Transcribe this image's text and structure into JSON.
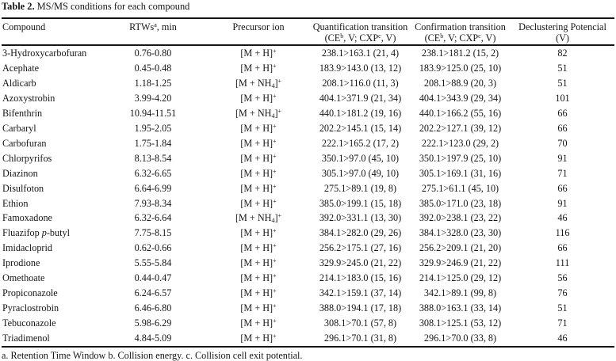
{
  "page": {
    "background": "#ffffff",
    "text_color": "#161616",
    "rule_color": "#151515"
  },
  "caption": {
    "label": "Table 2.",
    "text": "MS/MS conditions for each compound"
  },
  "table": {
    "columns": [
      {
        "id": "compound",
        "align": "left",
        "line1": "Compound",
        "line2": ""
      },
      {
        "id": "rtw",
        "align": "center",
        "line1": "RTWs^{a}, min",
        "line2": ""
      },
      {
        "id": "precursor",
        "align": "center",
        "line1": "Precursor ion",
        "line2": ""
      },
      {
        "id": "quantification",
        "align": "center",
        "line1": "Quantification transition",
        "line2": "(CE^{b}, V; CXP^{c}, V)"
      },
      {
        "id": "confirmation",
        "align": "center",
        "line1": "Confirmation transition",
        "line2": "(CE^{b}, V; CXP^{c}, V)"
      },
      {
        "id": "declustering",
        "align": "center",
        "line1": "Declustering Potencial",
        "line2": "(V)"
      }
    ],
    "rows": [
      [
        "3-Hydroxycarbofuran",
        "0.76-0.80",
        "[M + H]^{+}",
        "238.1>163.1 (21, 4)",
        "238.1>181.2 (15, 2)",
        "82"
      ],
      [
        "Acephate",
        "0.45-0.48",
        "[M + H]^{+}",
        "183.9>143.0 (13, 12)",
        "183.9>125.0 (25, 10)",
        "51"
      ],
      [
        "Aldicarb",
        "1.18-1.25",
        "[M + NH_{4}]^{+}",
        "208.1>116.0 (11, 3)",
        "208.1>88.9 (20, 3)",
        "51"
      ],
      [
        "Azoxystrobin",
        "3.99-4.20",
        "[M + H]^{+}",
        "404.1>371.9 (21, 34)",
        "404.1>343.9 (29, 34)",
        "101"
      ],
      [
        "Bifenthrin",
        "10.94-11.51",
        "[M + NH_{4}]^{+}",
        "440.1>181.2 (19, 16)",
        "440.1>166.2 (55, 16)",
        "66"
      ],
      [
        "Carbaryl",
        "1.95-2.05",
        "[M + H]^{+}",
        "202.2>145.1 (15, 14)",
        "202.2>127.1 (39, 12)",
        "66"
      ],
      [
        "Carbofuran",
        "1.75-1.84",
        "[M + H]^{+}",
        "222.1>165.2 (17, 2)",
        "222.1>123.0 (29, 2)",
        "70"
      ],
      [
        "Chlorpyrifos",
        "8.13-8.54",
        "[M + H]^{+}",
        "350.1>97.0 (45, 10)",
        "350.1>197.9 (25, 10)",
        "91"
      ],
      [
        "Diazinon",
        "6.32-6.65",
        "[M + H]^{+}",
        "305.1>97.0 (49, 10)",
        "305.1>169.1 (31, 16)",
        "71"
      ],
      [
        "Disulfoton",
        "6.64-6.99",
        "[M + H]^{+}",
        "275.1>89.1 (19, 8)",
        "275.1>61.1 (45, 10)",
        "66"
      ],
      [
        "Ethion",
        "7.93-8.34",
        "[M + H]^{+}",
        "385.0>199.1 (15, 18)",
        "385.0>171.0 (23, 18)",
        "91"
      ],
      [
        "Famoxadone",
        "6.32-6.64",
        "[M + NH_{4}]^{+}",
        "392.0>331.1 (13, 30)",
        "392.0>238.1 (23, 22)",
        "46"
      ],
      [
        "Fluazifop *p*-butyl",
        "7.75-8.15",
        "[M + H]^{+}",
        "384.1>282.0 (29, 26)",
        "384.1>328.0 (23, 30)",
        "116"
      ],
      [
        "Imidacloprid",
        "0.62-0.66",
        "[M + H]^{+}",
        "256.2>175.1 (27, 16)",
        "256.2>209.1 (21, 20)",
        "66"
      ],
      [
        "Iprodione",
        "5.55-5.84",
        "[M + H]^{+}",
        "329.9>245.0 (21, 22)",
        "329.9>246.9 (21, 22)",
        "111"
      ],
      [
        "Omethoate",
        "0.44-0.47",
        "[M + H]^{+}",
        "214.1>183.0 (15, 16)",
        "214.1>125.0 (29, 12)",
        "56"
      ],
      [
        "Propiconazole",
        "6.24-6.57",
        "[M + H]^{+}",
        "342.1>159.1 (37, 14)",
        "342.1>89.1 (99, 8)",
        "76"
      ],
      [
        "Pyraclostrobin",
        "6.46-6.80",
        "[M + H]^{+}",
        "388.0>194.1 (17, 18)",
        "388.0>163.1 (33, 14)",
        "51"
      ],
      [
        "Tebuconazole",
        "5.98-6.29",
        "[M + H]^{+}",
        "308.1>70.1 (57, 8)",
        "308.1>125.1 (53, 12)",
        "71"
      ],
      [
        "Triadimenol",
        "4.84-5.09",
        "[M + H]^{+}",
        "296.1>70.1 (31, 8)",
        "296.1>70.0 (33, 8)",
        "46"
      ]
    ]
  },
  "footnote": "a. Retention Time Window b. Collision energy. c. Collision cell exit potential."
}
